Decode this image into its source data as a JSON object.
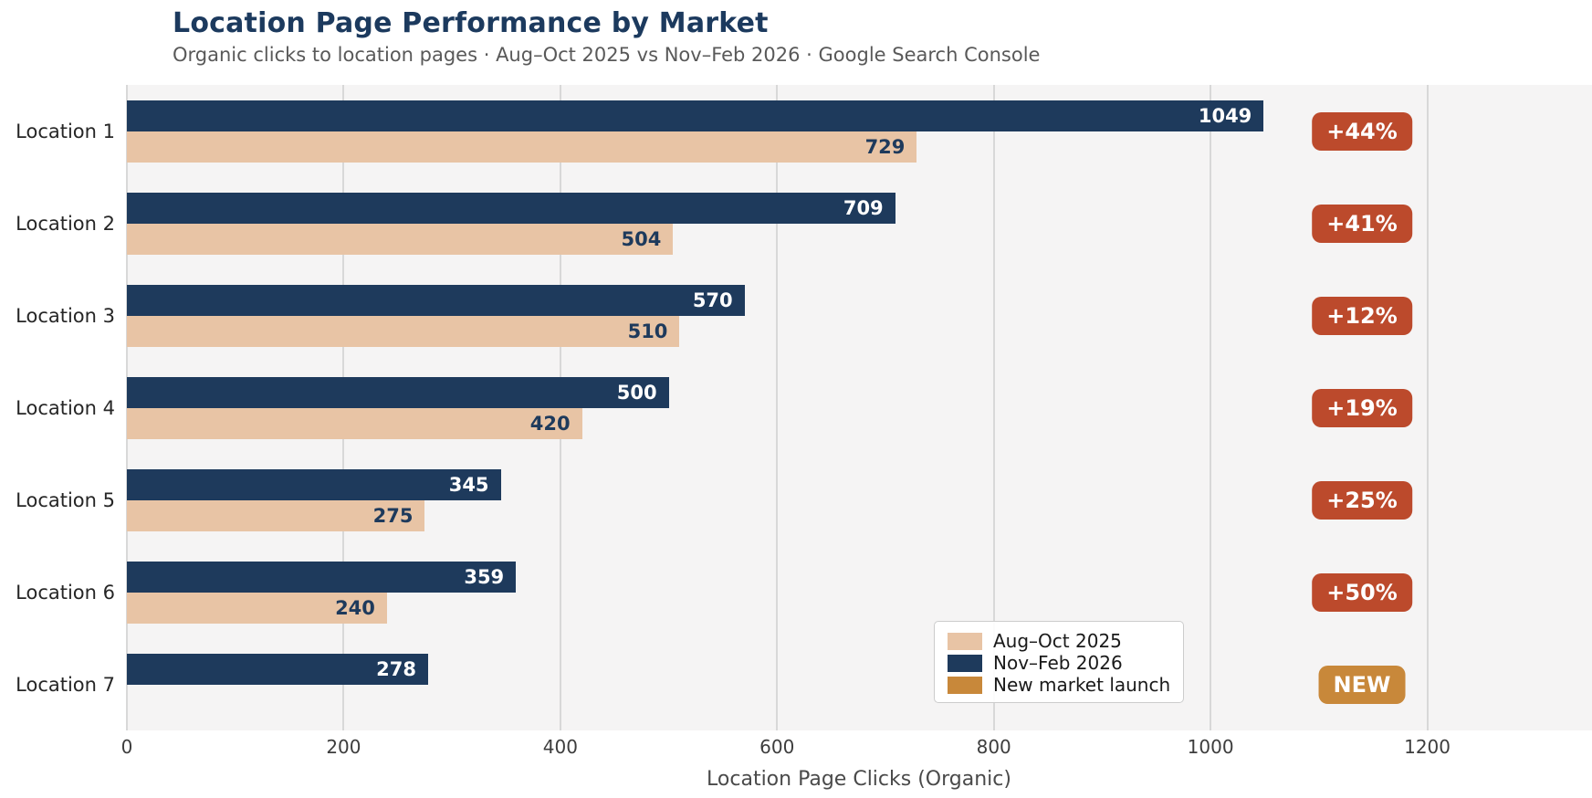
{
  "header": {
    "title": "Location Page Performance by Market",
    "subtitle": "Organic clicks to location pages · Aug–Oct 2025 vs Nov–Feb 2026 · Google Search Console"
  },
  "colors": {
    "navy": "#1e3a5c",
    "tan": "#e8c4a5",
    "badge_growth": "#bc4a2c",
    "badge_new": "#c8883a",
    "plot_background": "#f5f4f4",
    "gridline": "#d8d8d8",
    "title_text": "#1c3a5e",
    "bar_label_on_navy": "#ffffff",
    "bar_label_on_tan": "#1e3a5c"
  },
  "chart_data": {
    "type": "bar",
    "orientation": "horizontal",
    "title": "Location Page Performance by Market",
    "subtitle": "Organic clicks to location pages · Aug–Oct 2025 vs Nov–Feb 2026 · Google Search Console",
    "xlabel": "Location Page Clicks (Organic)",
    "ylabel": "",
    "xlim": [
      0,
      1352
    ],
    "xticks": [
      0,
      200,
      400,
      600,
      800,
      1000,
      1200
    ],
    "grid": "vertical",
    "categories": [
      "Location 1",
      "Location 2",
      "Location 3",
      "Location 4",
      "Location 5",
      "Location 6",
      "Location 7"
    ],
    "series": [
      {
        "name": "Aug–Oct 2025",
        "color": "#e8c4a5",
        "values": [
          729,
          504,
          510,
          420,
          275,
          240,
          null
        ]
      },
      {
        "name": "Nov–Feb 2026",
        "color": "#1e3a5c",
        "values": [
          1049,
          709,
          570,
          500,
          345,
          359,
          278
        ]
      }
    ],
    "badges": [
      {
        "label": "+44%",
        "kind": "growth"
      },
      {
        "label": "+41%",
        "kind": "growth"
      },
      {
        "label": "+12%",
        "kind": "growth"
      },
      {
        "label": "+19%",
        "kind": "growth"
      },
      {
        "label": "+25%",
        "kind": "growth"
      },
      {
        "label": "+50%",
        "kind": "growth"
      },
      {
        "label": "NEW",
        "kind": "new"
      }
    ],
    "legend": {
      "position": "lower right",
      "entries": [
        {
          "label": "Aug–Oct 2025",
          "color": "#e8c4a5"
        },
        {
          "label": "Nov–Feb 2026",
          "color": "#1e3a5c"
        },
        {
          "label": "New market launch",
          "color": "#c8883a"
        }
      ]
    }
  }
}
